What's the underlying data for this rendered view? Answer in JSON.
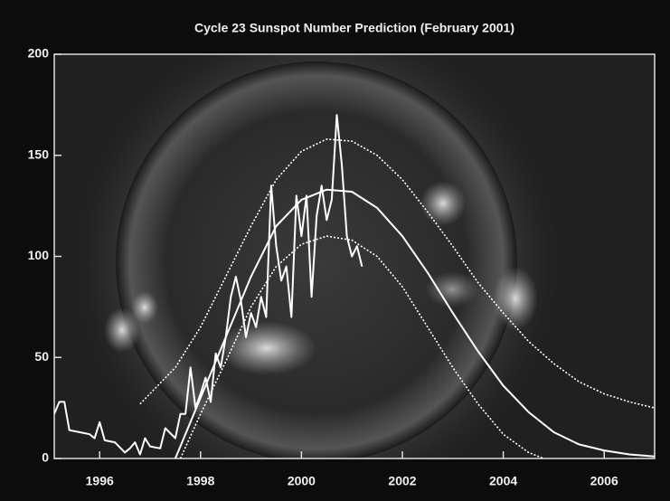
{
  "chart_data": {
    "type": "line",
    "title": "Cycle 23 Sunspot Number Prediction (February 2001)",
    "xlim": [
      1995.1,
      2007.0
    ],
    "xticks": [
      1996,
      1998,
      2000,
      2002,
      2004,
      2006
    ],
    "ylim": [
      0,
      200
    ],
    "yticks": [
      0,
      50,
      100,
      150,
      200
    ],
    "series": [
      {
        "color": "#ffffff",
        "style": "solid",
        "width": 2,
        "x": [
          1995.1,
          1995.2,
          1995.3,
          1995.4,
          1995.6,
          1995.8,
          1995.9,
          1996.0,
          1996.1,
          1996.3,
          1996.5,
          1996.6,
          1996.7,
          1996.8,
          1996.9,
          1997.0,
          1997.2,
          1997.3,
          1997.5,
          1997.6,
          1997.7,
          1997.8,
          1997.9,
          1998.0,
          1998.1,
          1998.2,
          1998.3,
          1998.4,
          1998.5,
          1998.6,
          1998.7,
          1998.8,
          1998.9,
          1999.0,
          1999.1,
          1999.2,
          1999.3,
          1999.4,
          1999.5,
          1999.6,
          1999.7,
          1999.8,
          1999.9,
          2000.0,
          2000.1,
          2000.2,
          2000.3,
          2000.4,
          2000.5,
          2000.6,
          2000.7,
          2000.8,
          2000.9,
          2001.0,
          2001.1,
          2001.2
        ],
        "values": [
          22,
          28,
          28,
          14,
          13,
          12,
          10,
          18,
          9,
          8,
          3,
          5,
          8,
          2,
          10,
          6,
          5,
          15,
          10,
          22,
          22,
          45,
          25,
          32,
          40,
          28,
          52,
          45,
          60,
          80,
          90,
          78,
          60,
          72,
          65,
          80,
          70,
          135,
          105,
          88,
          95,
          70,
          130,
          110,
          130,
          80,
          120,
          135,
          118,
          128,
          170,
          145,
          110,
          100,
          105,
          95
        ]
      },
      {
        "color": "#ffffff",
        "style": "solid",
        "width": 2,
        "x": [
          1997.5,
          1998,
          1998.5,
          1999,
          1999.5,
          2000,
          2000.5,
          2001,
          2001.5,
          2002,
          2002.5,
          2003,
          2003.5,
          2004,
          2004.5,
          2005,
          2005.5,
          2006,
          2006.5,
          2007
        ],
        "values": [
          0,
          30,
          60,
          90,
          115,
          128,
          133,
          132,
          124,
          110,
          92,
          72,
          53,
          36,
          23,
          13,
          7,
          4,
          2,
          1
        ]
      },
      {
        "color": "#ffffff",
        "style": "dotted",
        "width": 1.6,
        "x": [
          1996.8,
          1997.5,
          1998,
          1998.5,
          1999,
          1999.5,
          2000,
          2000.5,
          2001,
          2001.5,
          2002,
          2002.5,
          2003,
          2003.5,
          2004,
          2004.5,
          2005,
          2005.5,
          2006,
          2006.5,
          2007
        ],
        "values": [
          27,
          45,
          65,
          90,
          115,
          138,
          152,
          158,
          157,
          150,
          138,
          122,
          105,
          87,
          72,
          58,
          47,
          38,
          32,
          28,
          25
        ]
      },
      {
        "color": "#ffffff",
        "style": "dotted",
        "width": 1.6,
        "x": [
          1997.6,
          1998,
          1998.5,
          1999,
          1999.5,
          2000,
          2000.5,
          2001,
          2001.5,
          2002,
          2002.5,
          2003,
          2003.5,
          2004,
          2004.5,
          2004.8
        ],
        "values": [
          0,
          22,
          48,
          75,
          95,
          106,
          110,
          108,
          100,
          85,
          65,
          45,
          27,
          12,
          3,
          0
        ]
      }
    ]
  }
}
